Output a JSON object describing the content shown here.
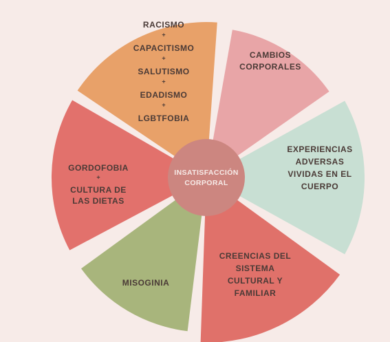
{
  "center": {
    "lines": [
      "INSATISFACCIÓN",
      "CORPORAL"
    ],
    "color": "#cc8680"
  },
  "segments": [
    {
      "id": "factores-opresion",
      "color": "#e8a169",
      "lines": [
        "RACISMO",
        "+",
        "CAPACITISMO",
        "+",
        "SALUTISMO",
        "+",
        "EDADISMO",
        "+",
        "LGBTFOBIA"
      ]
    },
    {
      "id": "cambios-corporales",
      "color": "#e8a5a7",
      "lines": [
        "CAMBIOS",
        "CORPORALES"
      ]
    },
    {
      "id": "experiencias-adversas",
      "color": "#c8dfd3",
      "lines": [
        "EXPERIENCIAS",
        "ADVERSAS",
        "VIVIDAS EN EL",
        "CUERPO"
      ]
    },
    {
      "id": "creencias",
      "color": "#e0716a",
      "lines": [
        "CREENCIAS DEL",
        "SISTEMA",
        "CULTURAL Y",
        "FAMILIAR"
      ]
    },
    {
      "id": "misoginia",
      "color": "#a8b57c",
      "lines": [
        "MISOGINIA"
      ]
    },
    {
      "id": "gordofobia",
      "color": "#e2716c",
      "lines": [
        "GORDOFOBIA",
        "+",
        "CULTURA DE",
        "LAS DIETAS"
      ]
    }
  ]
}
